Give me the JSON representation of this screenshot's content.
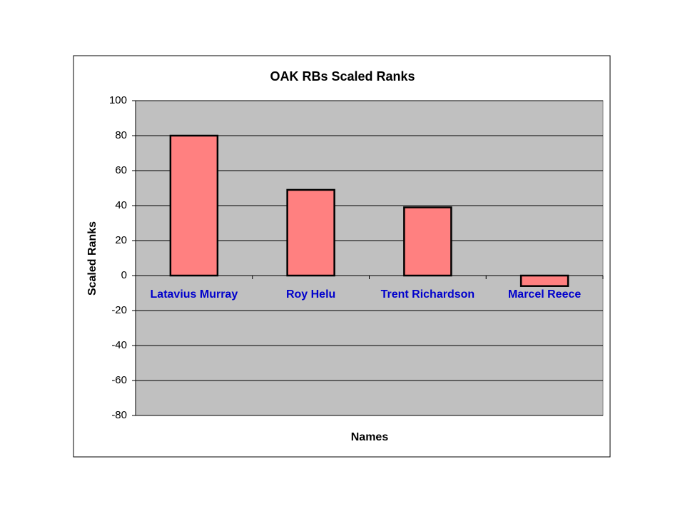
{
  "chart_data": {
    "type": "bar",
    "title": "OAK RBs Scaled Ranks",
    "x_label": "Names",
    "y_label": "Scaled Ranks",
    "categories": [
      "Latavius Murray",
      "Roy Helu",
      "Trent Richardson",
      "Marcel Reece"
    ],
    "values": [
      80,
      49,
      39,
      -6
    ],
    "color": "#ff8080",
    "ylim": [
      -80,
      100
    ],
    "yticks": [
      -80,
      -60,
      -40,
      -20,
      0,
      20,
      40,
      60,
      80,
      100
    ],
    "grid": true
  }
}
